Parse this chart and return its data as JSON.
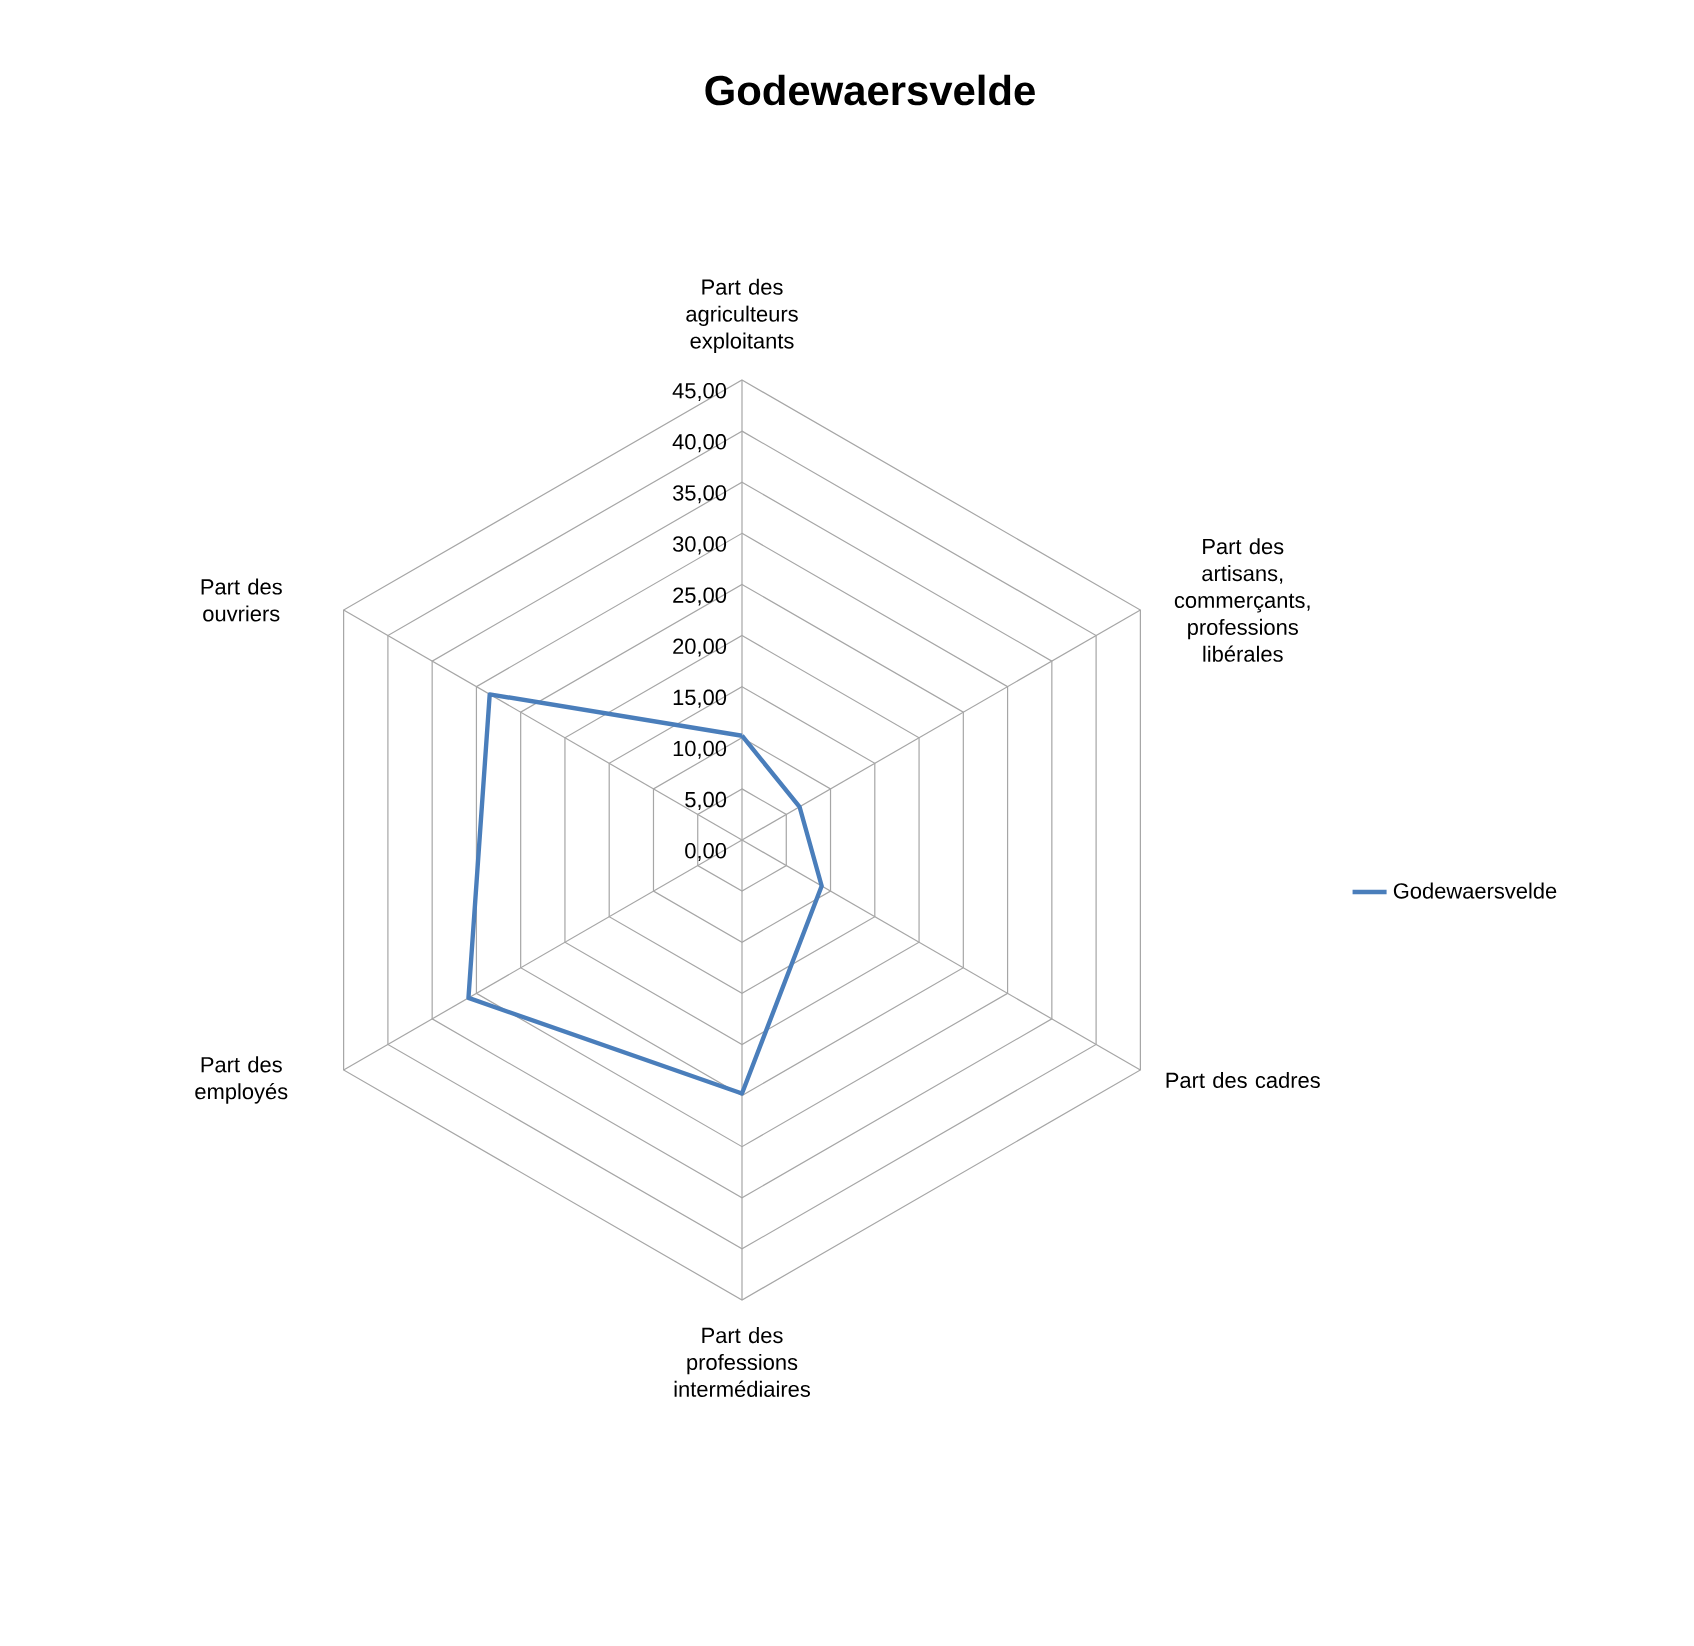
{
  "chart_data": {
    "type": "radar",
    "title": "Godewaersvelde",
    "categories": [
      "Part des agriculteurs exploitants",
      "Part des artisans, commerçants, professions libérales",
      "Part des cadres",
      "Part des professions intermédiaires",
      "Part des employés",
      "Part des ouvriers"
    ],
    "series": [
      {
        "name": "Godewaersvelde",
        "color": "#4a7ebb",
        "values": [
          10.2,
          6.5,
          9.0,
          24.8,
          30.9,
          28.5
        ]
      }
    ],
    "ylim": [
      0,
      45
    ],
    "yticks": [
      {
        "value": 0,
        "label": "0,00"
      },
      {
        "value": 5,
        "label": "5,00"
      },
      {
        "value": 10,
        "label": "10,00"
      },
      {
        "value": 15,
        "label": "15,00"
      },
      {
        "value": 20,
        "label": "20,00"
      },
      {
        "value": 25,
        "label": "25,00"
      },
      {
        "value": 30,
        "label": "30,00"
      },
      {
        "value": 35,
        "label": "35,00"
      },
      {
        "value": 40,
        "label": "40,00"
      },
      {
        "value": 45,
        "label": "45,00"
      }
    ],
    "grid": true,
    "legend": "right",
    "marker": "none",
    "line_style": "solid"
  }
}
